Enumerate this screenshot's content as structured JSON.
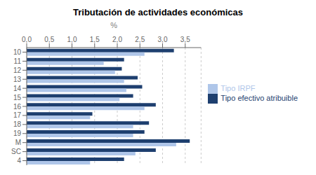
{
  "chart_data": {
    "type": "bar",
    "title": "Tributación de actividades económicas",
    "x_label": "%",
    "orientation": "horizontal",
    "categories": [
      "10",
      "11",
      "12",
      "13",
      "14",
      "15",
      "16",
      "17",
      "18",
      "19",
      "M",
      "SC",
      "4"
    ],
    "series": [
      {
        "name": "Tipo efectivo atribuible",
        "color": "#1e3f6f",
        "values": [
          3.25,
          2.15,
          2.1,
          2.45,
          2.55,
          2.35,
          2.85,
          1.45,
          2.7,
          2.6,
          3.6,
          2.85,
          2.15
        ]
      },
      {
        "name": "Tipo IRPF",
        "color": "#afc6e9",
        "values": [
          2.6,
          1.7,
          1.95,
          2.15,
          2.2,
          2.05,
          2.6,
          1.4,
          2.35,
          2.35,
          3.3,
          2.4,
          1.4
        ]
      }
    ],
    "xlim": [
      0,
      3.85
    ],
    "xticks": [
      {
        "value": 0.0,
        "label": "0,0"
      },
      {
        "value": 0.5,
        "label": "0,5"
      },
      {
        "value": 1.0,
        "label": "1,0"
      },
      {
        "value": 1.5,
        "label": "1,5"
      },
      {
        "value": 2.0,
        "label": "2,0"
      },
      {
        "value": 2.5,
        "label": "2,5"
      },
      {
        "value": 3.0,
        "label": "3,0"
      },
      {
        "value": 3.5,
        "label": "3,5"
      }
    ],
    "grid": true,
    "legend": "right"
  }
}
